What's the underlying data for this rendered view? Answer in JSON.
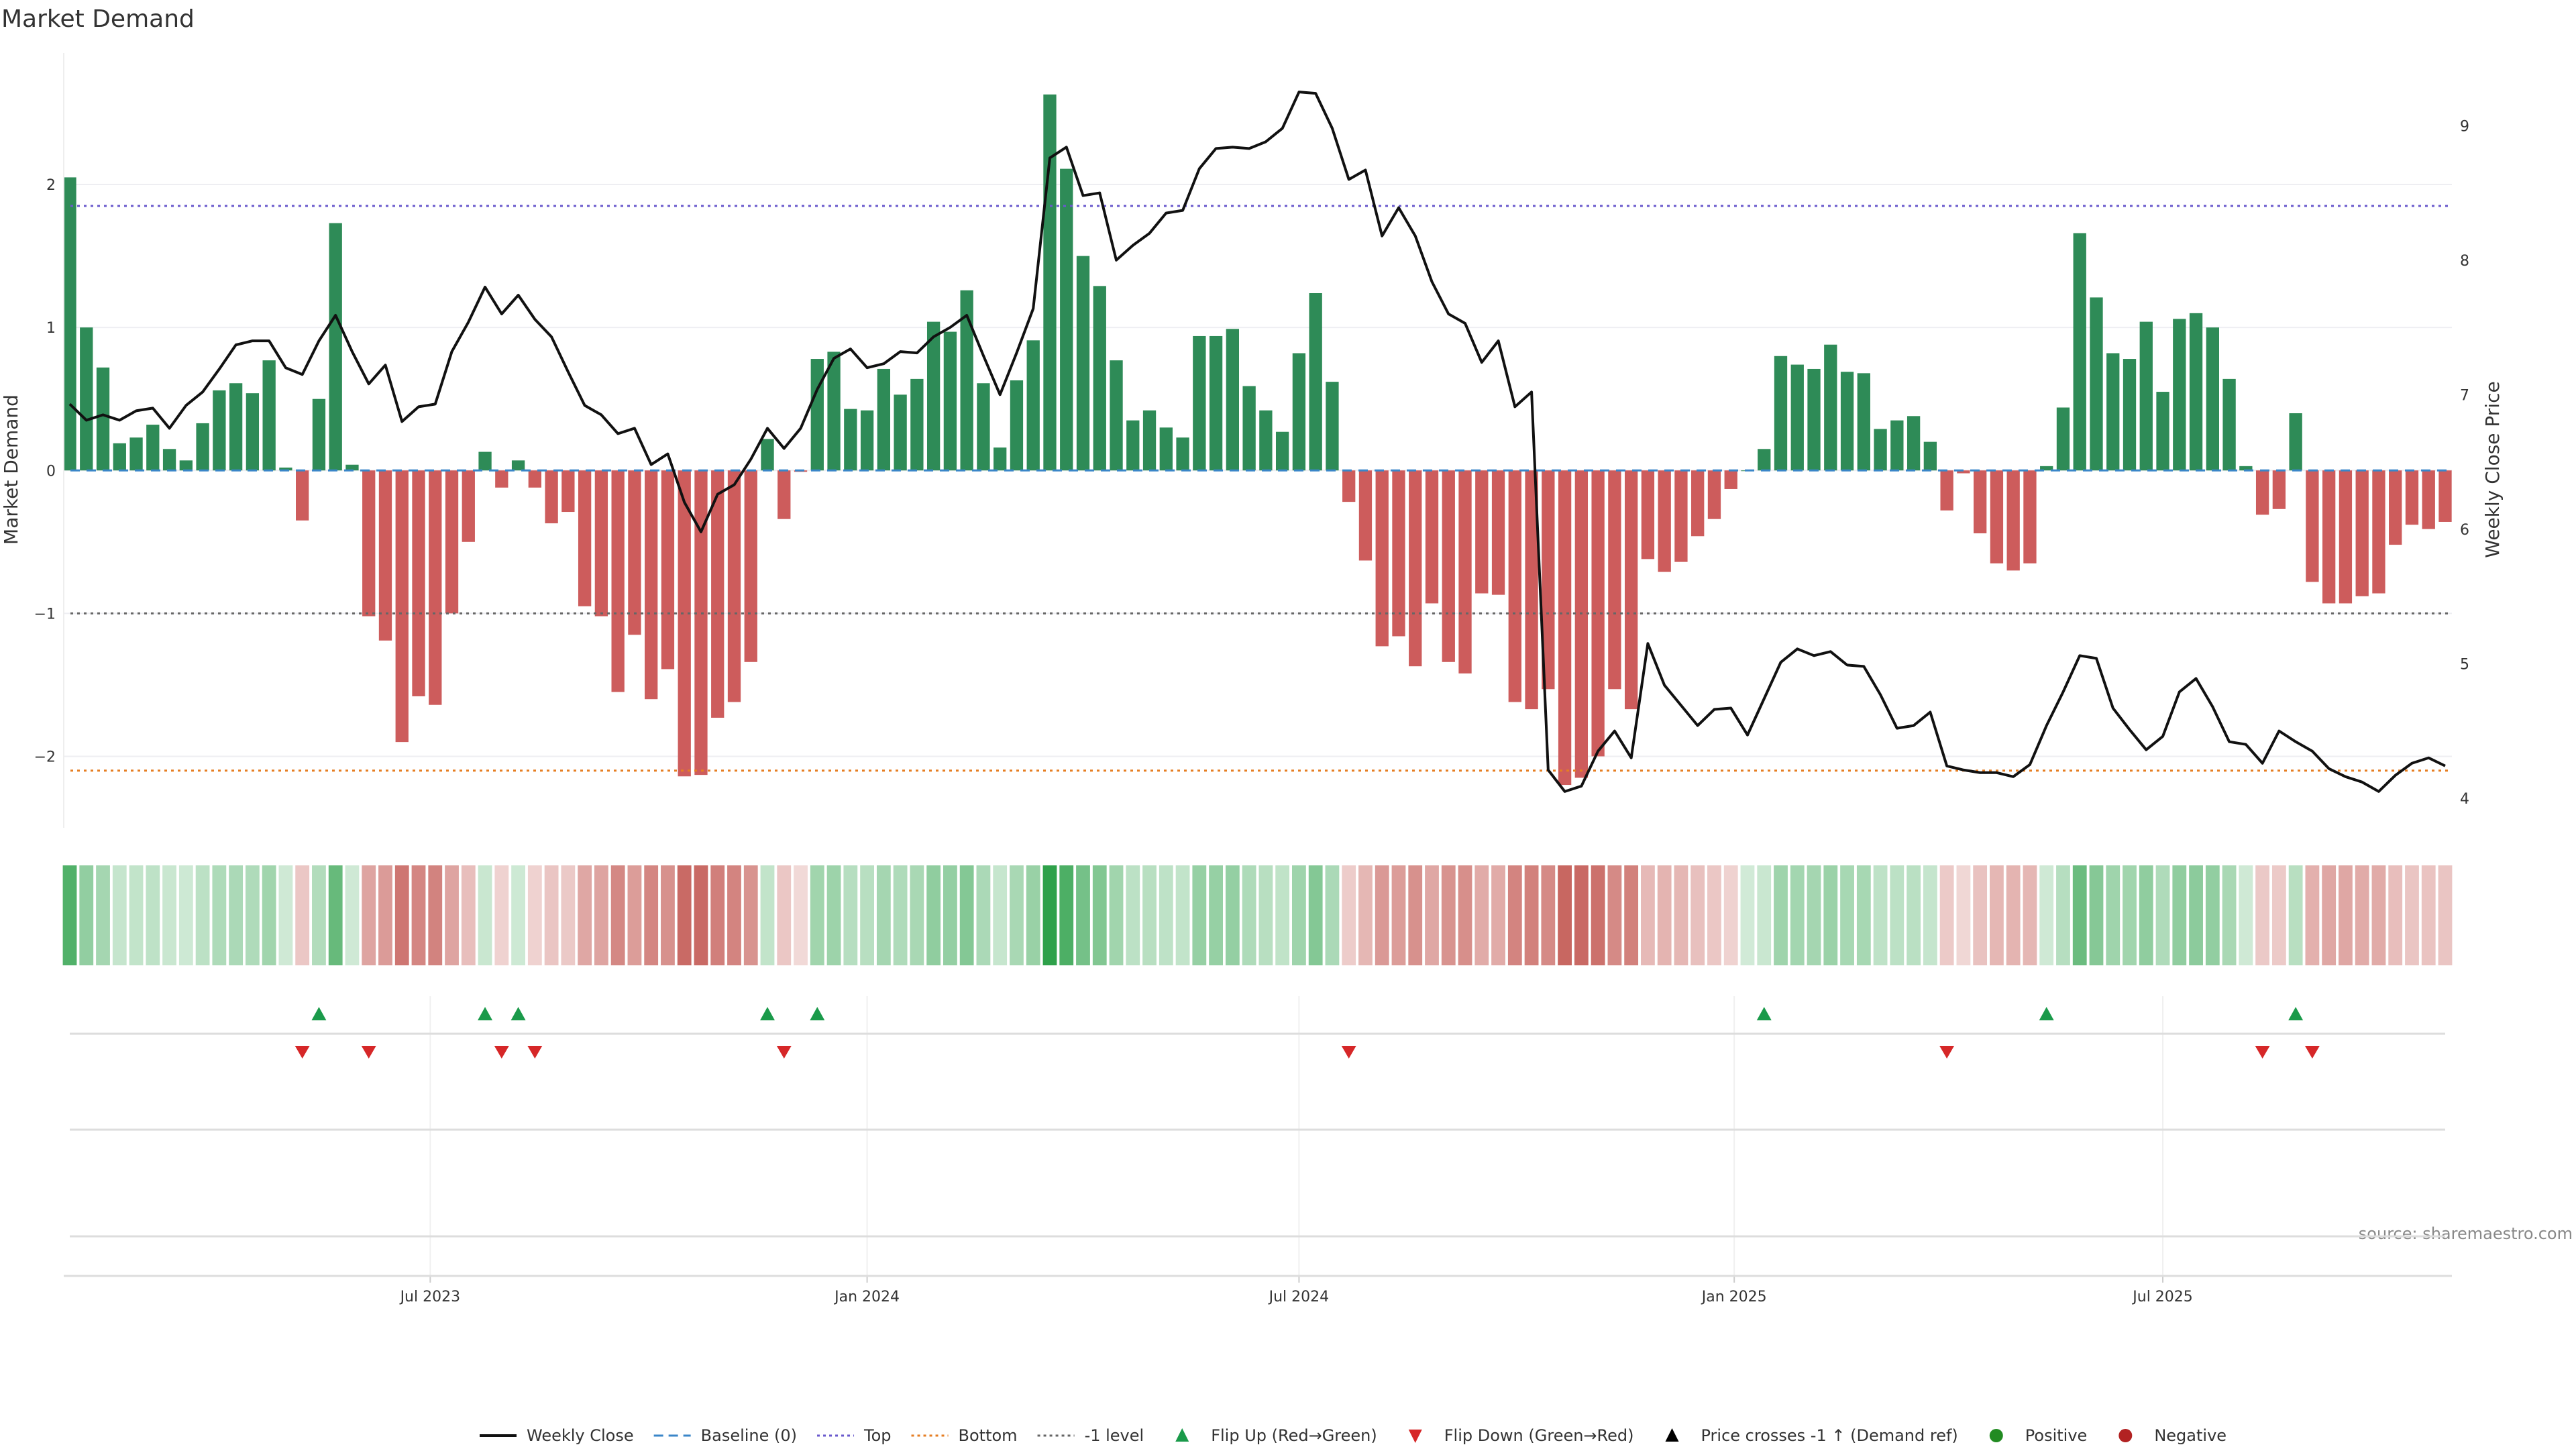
{
  "chart_data": {
    "type": "bar",
    "title": "Market Demand",
    "ylabel": "Market Demand",
    "y2label": "Weekly Close Price",
    "ylim": [
      -2.5,
      2.92
    ],
    "y2lim": [
      3.78,
      9.54
    ],
    "yticks": [
      -2,
      -1,
      0,
      1,
      2
    ],
    "y2ticks": [
      4,
      5,
      6,
      7,
      8,
      9
    ],
    "xticks": [
      {
        "index": 21.7,
        "label": "Jul 2023"
      },
      {
        "index": 48.0,
        "label": "Jan 2024"
      },
      {
        "index": 74.0,
        "label": "Jul 2024"
      },
      {
        "index": 100.2,
        "label": "Jan 2025"
      },
      {
        "index": 126.0,
        "label": "Jul 2025"
      }
    ],
    "reference_lines": {
      "top": 1.85,
      "bottom": -2.1,
      "minus_one": -1,
      "baseline": 0
    },
    "colors": {
      "positive": "#2e8b57",
      "negative": "#cd5c5c",
      "heat_pos": "#2ea14a",
      "heat_neg": "#c0504a",
      "top": "#6a5acd",
      "bottom": "#e67e22",
      "minus_one": "#666666",
      "baseline": "#3a86c8",
      "flip_up": "#1a9a4a",
      "flip_down": "#d62728",
      "price": "#111111"
    },
    "demand": [
      2.05,
      1.0,
      0.72,
      0.19,
      0.23,
      0.32,
      0.15,
      0.07,
      0.33,
      0.56,
      0.61,
      0.54,
      0.77,
      0.02,
      -0.35,
      0.5,
      1.73,
      0.04,
      -1.02,
      -1.19,
      -1.9,
      -1.58,
      -1.64,
      -1.0,
      -0.5,
      0.13,
      -0.12,
      0.07,
      -0.12,
      -0.37,
      -0.29,
      -0.95,
      -1.02,
      -1.55,
      -1.15,
      -1.6,
      -1.39,
      -2.14,
      -2.13,
      -1.73,
      -1.62,
      -1.34,
      0.22,
      -0.34,
      -0.01,
      0.78,
      0.83,
      0.43,
      0.42,
      0.71,
      0.53,
      0.64,
      1.04,
      0.97,
      1.26,
      0.61,
      0.16,
      0.63,
      0.91,
      2.63,
      2.11,
      1.5,
      1.29,
      0.77,
      0.35,
      0.42,
      0.3,
      0.23,
      0.94,
      0.94,
      0.99,
      0.59,
      0.42,
      0.27,
      0.82,
      1.24,
      0.62,
      -0.22,
      -0.63,
      -1.23,
      -1.16,
      -1.37,
      -0.93,
      -1.34,
      -1.42,
      -0.86,
      -0.87,
      -1.62,
      -1.67,
      -1.53,
      -2.2,
      -2.15,
      -2.0,
      -1.53,
      -1.67,
      -0.62,
      -0.71,
      -0.64,
      -0.46,
      -0.34,
      -0.13,
      0.0,
      0.15,
      0.8,
      0.74,
      0.71,
      0.88,
      0.69,
      0.68,
      0.29,
      0.35,
      0.38,
      0.2,
      -0.28,
      -0.02,
      -0.44,
      -0.65,
      -0.7,
      -0.65,
      0.03,
      0.44,
      1.66,
      1.21,
      0.82,
      0.78,
      1.04,
      0.55,
      1.06,
      1.1,
      1.0,
      0.64,
      0.03,
      -0.31,
      -0.27,
      0.4,
      -0.78,
      -0.93,
      -0.93,
      -0.88,
      -0.86,
      -0.52,
      -0.38,
      -0.41,
      -0.36
    ],
    "price": [
      6.93,
      6.81,
      6.85,
      6.81,
      6.88,
      6.9,
      6.75,
      6.92,
      7.02,
      7.19,
      7.37,
      7.4,
      7.4,
      7.2,
      7.15,
      7.4,
      7.59,
      7.32,
      7.08,
      7.22,
      6.8,
      6.91,
      6.93,
      7.32,
      7.54,
      7.8,
      7.6,
      7.74,
      7.56,
      7.43,
      7.17,
      6.92,
      6.85,
      6.71,
      6.75,
      6.48,
      6.56,
      6.2,
      5.98,
      6.26,
      6.33,
      6.52,
      6.75,
      6.6,
      6.75,
      7.04,
      7.27,
      7.34,
      7.2,
      7.23,
      7.32,
      7.31,
      7.43,
      7.5,
      7.59,
      7.29,
      7.0,
      7.31,
      7.64,
      8.76,
      8.84,
      8.48,
      8.5,
      8.0,
      8.11,
      8.2,
      8.35,
      8.37,
      8.68,
      8.83,
      8.84,
      8.83,
      8.88,
      8.98,
      9.25,
      9.24,
      8.98,
      8.6,
      8.67,
      8.18,
      8.39,
      8.18,
      7.84,
      7.6,
      7.53,
      7.24,
      7.4,
      6.91,
      7.02,
      4.21,
      4.05,
      4.09,
      4.35,
      4.5,
      4.3,
      5.15,
      4.84,
      4.69,
      4.54,
      4.66,
      4.67,
      4.47,
      4.74,
      5.01,
      5.11,
      5.06,
      5.09,
      4.99,
      4.98,
      4.77,
      4.52,
      4.54,
      4.64,
      4.24,
      4.21,
      4.19,
      4.19,
      4.16,
      4.25,
      4.54,
      4.79,
      5.06,
      5.04,
      4.67,
      4.51,
      4.36,
      4.46,
      4.79,
      4.89,
      4.68,
      4.42,
      4.4,
      4.26,
      4.5,
      4.42,
      4.35,
      4.22,
      4.16,
      4.12,
      4.05,
      4.17,
      4.26,
      4.3,
      4.24
    ],
    "flip_up_indices": [
      15,
      25,
      27,
      42,
      45,
      102,
      119,
      134
    ],
    "flip_down_indices": [
      14,
      18,
      26,
      28,
      43,
      77,
      113,
      132,
      135
    ],
    "legend_position": "bottom-center",
    "legend": [
      {
        "key": "line",
        "label": "Weekly Close"
      },
      {
        "key": "baseline",
        "label": "Baseline (0)"
      },
      {
        "key": "top",
        "label": "Top"
      },
      {
        "key": "bottom",
        "label": "Bottom"
      },
      {
        "key": "minus_one",
        "label": "-1 level"
      },
      {
        "key": "up",
        "label": "Flip Up (Red→Green)"
      },
      {
        "key": "down",
        "label": "Flip Down (Green→Red)"
      },
      {
        "key": "cross",
        "label": "Price crosses -1 ↑ (Demand ref)"
      },
      {
        "key": "pos",
        "label": "Positive"
      },
      {
        "key": "neg",
        "label": "Negative"
      }
    ],
    "source": "source: sharemaestro.com"
  }
}
